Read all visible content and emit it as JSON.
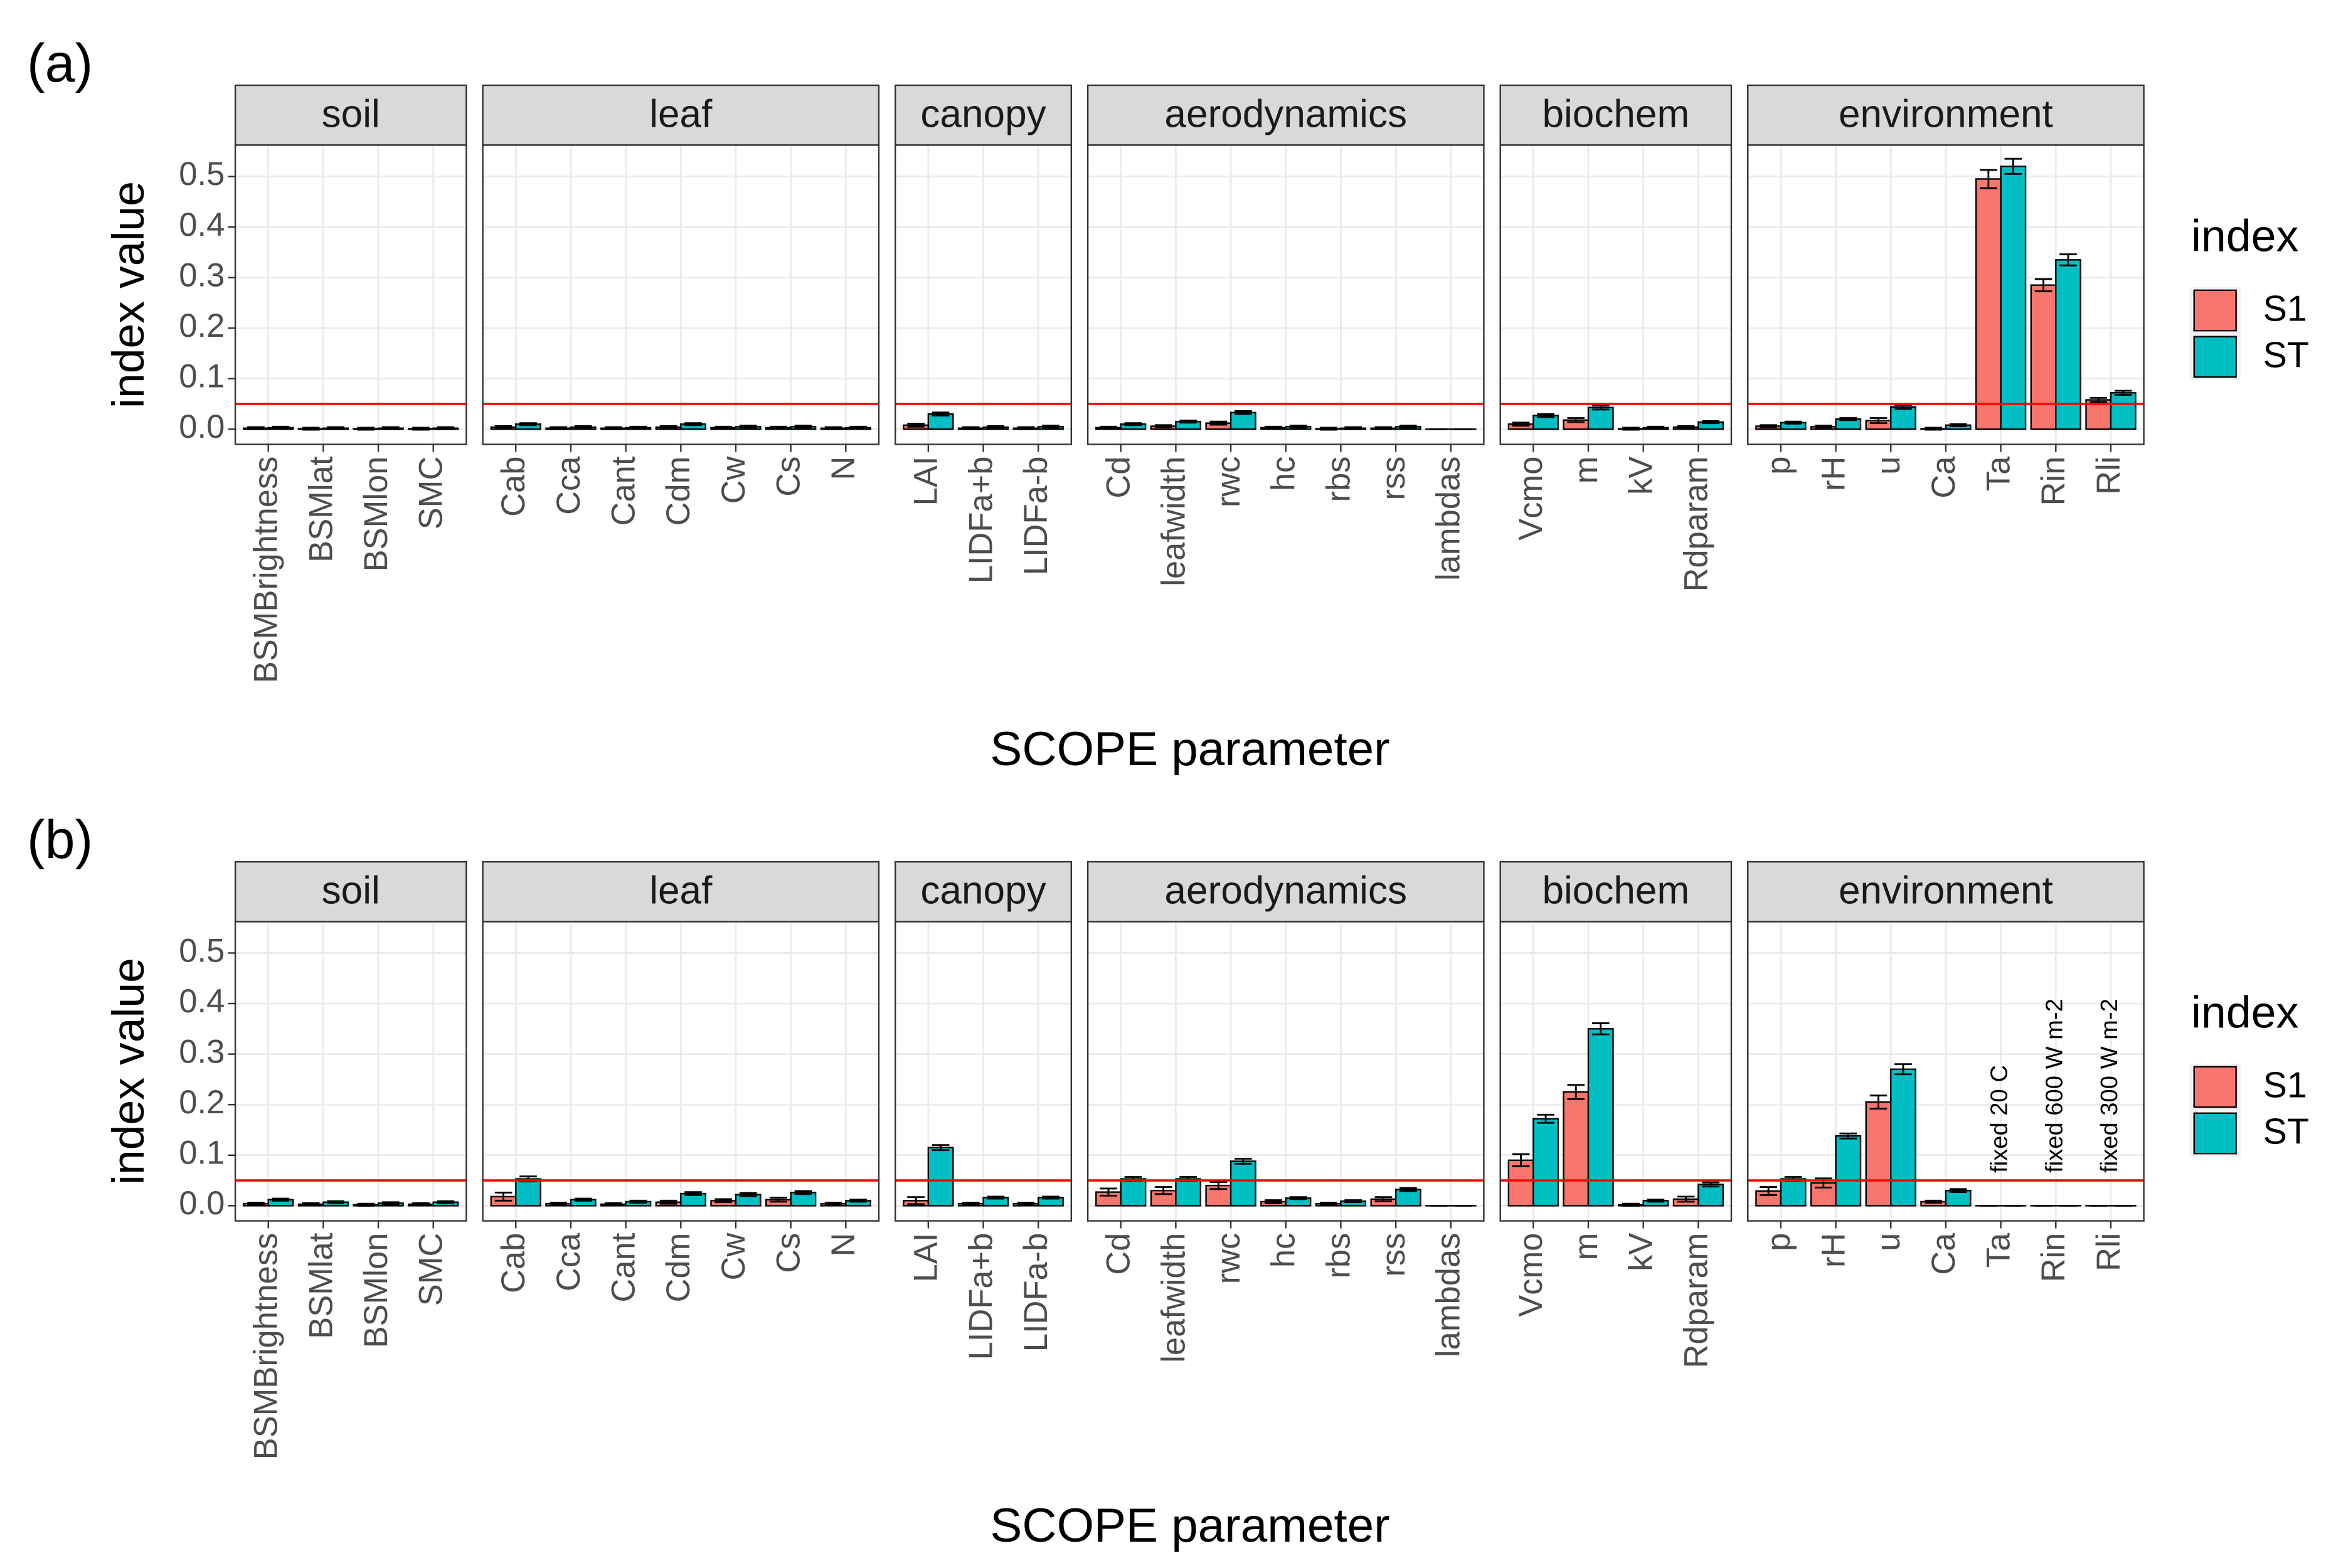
{
  "chart_data": [
    {
      "type": "bar",
      "panel_label": "(a)",
      "xlabel": "SCOPE parameter",
      "ylabel": "index value",
      "legend_title": "index",
      "ylim": [
        -0.03,
        0.562
      ],
      "yticks": [
        {
          "value": 0,
          "label": "0.0"
        },
        0.1,
        0.2,
        0.3,
        0.4,
        0.5
      ],
      "grid": true,
      "hline": 0.05,
      "hline_color": "#ff0000",
      "series": [
        {
          "name": "S1",
          "color": "#F8766D"
        },
        {
          "name": "ST",
          "color": "#00BFC4"
        }
      ],
      "facets": [
        {
          "name": "soil",
          "categories": [
            "BSMBrightness",
            "BSMlat",
            "BSMlon",
            "SMC"
          ],
          "series": [
            {
              "values": [
                0.002,
                0.001,
                0.001,
                0.001
              ],
              "errors": [
                0.002,
                0.002,
                0.002,
                0.002
              ]
            },
            {
              "values": [
                0.003,
                0.002,
                0.002,
                0.002
              ],
              "errors": [
                0.002,
                0.002,
                0.002,
                0.002
              ]
            }
          ]
        },
        {
          "name": "leaf",
          "categories": [
            "Cab",
            "Cca",
            "Cant",
            "Cdm",
            "Cw",
            "Cs",
            "N"
          ],
          "series": [
            {
              "values": [
                0.004,
                0.002,
                0.002,
                0.004,
                0.003,
                0.003,
                0.002
              ],
              "errors": [
                0.002,
                0.002,
                0.002,
                0.002,
                0.002,
                0.002,
                0.002
              ]
            },
            {
              "values": [
                0.01,
                0.004,
                0.003,
                0.01,
                0.005,
                0.005,
                0.003
              ],
              "errors": [
                0.002,
                0.002,
                0.002,
                0.002,
                0.002,
                0.002,
                0.002
              ]
            }
          ]
        },
        {
          "name": "canopy",
          "categories": [
            "LAI",
            "LIDFa+b",
            "LIDFa-b"
          ],
          "series": [
            {
              "values": [
                0.008,
                0.002,
                0.002
              ],
              "errors": [
                0.003,
                0.002,
                0.002
              ]
            },
            {
              "values": [
                0.03,
                0.004,
                0.005
              ],
              "errors": [
                0.003,
                0.002,
                0.002
              ]
            }
          ]
        },
        {
          "name": "aerodynamics",
          "categories": [
            "Cd",
            "leafwidth",
            "rwc",
            "hc",
            "rbs",
            "rss",
            "lambdas"
          ],
          "series": [
            {
              "values": [
                0.003,
                0.006,
                0.012,
                0.003,
                0.001,
                0.002,
                0.0
              ],
              "errors": [
                0.002,
                0.002,
                0.003,
                0.002,
                0.002,
                0.002,
                0.0
              ]
            },
            {
              "values": [
                0.01,
                0.015,
                0.033,
                0.005,
                0.002,
                0.005,
                0.0
              ],
              "errors": [
                0.002,
                0.002,
                0.003,
                0.002,
                0.002,
                0.002,
                0.0
              ]
            }
          ]
        },
        {
          "name": "biochem",
          "categories": [
            "Vcmo",
            "m",
            "kV",
            "Rdparam"
          ],
          "series": [
            {
              "values": [
                0.01,
                0.018,
                0.001,
                0.004
              ],
              "errors": [
                0.003,
                0.004,
                0.002,
                0.002
              ]
            },
            {
              "values": [
                0.027,
                0.043,
                0.003,
                0.014
              ],
              "errors": [
                0.003,
                0.004,
                0.002,
                0.002
              ]
            }
          ]
        },
        {
          "name": "environment",
          "categories": [
            "p",
            "rH",
            "u",
            "Ca",
            "Ta",
            "Rin",
            "Rli"
          ],
          "series": [
            {
              "values": [
                0.006,
                0.005,
                0.017,
                0.001,
                0.495,
                0.285,
                0.058
              ],
              "errors": [
                0.002,
                0.002,
                0.005,
                0.002,
                0.018,
                0.012,
                0.004
              ]
            },
            {
              "values": [
                0.013,
                0.02,
                0.044,
                0.008,
                0.52,
                0.335,
                0.072
              ],
              "errors": [
                0.002,
                0.002,
                0.004,
                0.002,
                0.015,
                0.011,
                0.004
              ]
            }
          ]
        }
      ]
    },
    {
      "type": "bar",
      "panel_label": "(b)",
      "xlabel": "SCOPE parameter",
      "ylabel": "index value",
      "legend_title": "index",
      "ylim": [
        -0.03,
        0.562
      ],
      "yticks": [
        {
          "value": 0,
          "label": "0.0"
        },
        0.1,
        0.2,
        0.3,
        0.4,
        0.5
      ],
      "grid": true,
      "hline": 0.05,
      "hline_color": "#ff0000",
      "series": [
        {
          "name": "S1",
          "color": "#F8766D"
        },
        {
          "name": "ST",
          "color": "#00BFC4"
        }
      ],
      "facets": [
        {
          "name": "soil",
          "categories": [
            "BSMBrightness",
            "BSMlat",
            "BSMlon",
            "SMC"
          ],
          "series": [
            {
              "values": [
                0.004,
                0.003,
                0.002,
                0.003
              ],
              "errors": [
                0.002,
                0.002,
                0.002,
                0.002
              ]
            },
            {
              "values": [
                0.012,
                0.007,
                0.005,
                0.007
              ],
              "errors": [
                0.002,
                0.002,
                0.002,
                0.002
              ]
            }
          ]
        },
        {
          "name": "leaf",
          "categories": [
            "Cab",
            "Cca",
            "Cant",
            "Cdm",
            "Cw",
            "Cs",
            "N"
          ],
          "series": [
            {
              "values": [
                0.018,
                0.004,
                0.003,
                0.007,
                0.01,
                0.012,
                0.004
              ],
              "errors": [
                0.008,
                0.002,
                0.002,
                0.003,
                0.003,
                0.004,
                0.002
              ]
            },
            {
              "values": [
                0.053,
                0.012,
                0.008,
                0.024,
                0.022,
                0.026,
                0.01
              ],
              "errors": [
                0.005,
                0.002,
                0.002,
                0.003,
                0.003,
                0.003,
                0.002
              ]
            }
          ]
        },
        {
          "name": "canopy",
          "categories": [
            "LAI",
            "LIDFa+b",
            "LIDFa-b"
          ],
          "series": [
            {
              "values": [
                0.01,
                0.004,
                0.004
              ],
              "errors": [
                0.007,
                0.002,
                0.002
              ]
            },
            {
              "values": [
                0.115,
                0.016,
                0.016
              ],
              "errors": [
                0.005,
                0.002,
                0.002
              ]
            }
          ]
        },
        {
          "name": "aerodynamics",
          "categories": [
            "Cd",
            "leafwidth",
            "rwc",
            "hc",
            "rbs",
            "rss",
            "lambdas"
          ],
          "series": [
            {
              "values": [
                0.027,
                0.03,
                0.04,
                0.008,
                0.004,
                0.013,
                0.0
              ],
              "errors": [
                0.007,
                0.007,
                0.007,
                0.003,
                0.002,
                0.004,
                0.0
              ]
            },
            {
              "values": [
                0.053,
                0.053,
                0.088,
                0.015,
                0.009,
                0.032,
                0.0
              ],
              "errors": [
                0.004,
                0.004,
                0.005,
                0.002,
                0.002,
                0.003,
                0.0
              ]
            }
          ]
        },
        {
          "name": "biochem",
          "categories": [
            "Vcmo",
            "m",
            "kV",
            "Rdparam"
          ],
          "series": [
            {
              "values": [
                0.09,
                0.225,
                0.002,
                0.013
              ],
              "errors": [
                0.012,
                0.014,
                0.002,
                0.005
              ]
            },
            {
              "values": [
                0.172,
                0.35,
                0.01,
                0.042
              ],
              "errors": [
                0.008,
                0.011,
                0.002,
                0.004
              ]
            }
          ]
        },
        {
          "name": "environment",
          "categories": [
            "p",
            "rH",
            "u",
            "Ca",
            "Ta",
            "Rin",
            "Rli"
          ],
          "series": [
            {
              "values": [
                0.029,
                0.045,
                0.205,
                0.008,
                0.0,
                0.0,
                0.0
              ],
              "errors": [
                0.008,
                0.009,
                0.013,
                0.002,
                0.0,
                0.0,
                0.0
              ]
            },
            {
              "values": [
                0.053,
                0.138,
                0.27,
                0.03,
                0.0,
                0.0,
                0.0
              ],
              "errors": [
                0.004,
                0.005,
                0.01,
                0.003,
                0.0,
                0.0,
                0.0
              ]
            }
          ],
          "annotations": [
            {
              "x": "Ta",
              "text": "fixed 20 C"
            },
            {
              "x": "Rin",
              "text": "fixed 600 W m-2"
            },
            {
              "x": "Rli",
              "text": "fixed 300 W m-2"
            }
          ]
        }
      ]
    }
  ]
}
